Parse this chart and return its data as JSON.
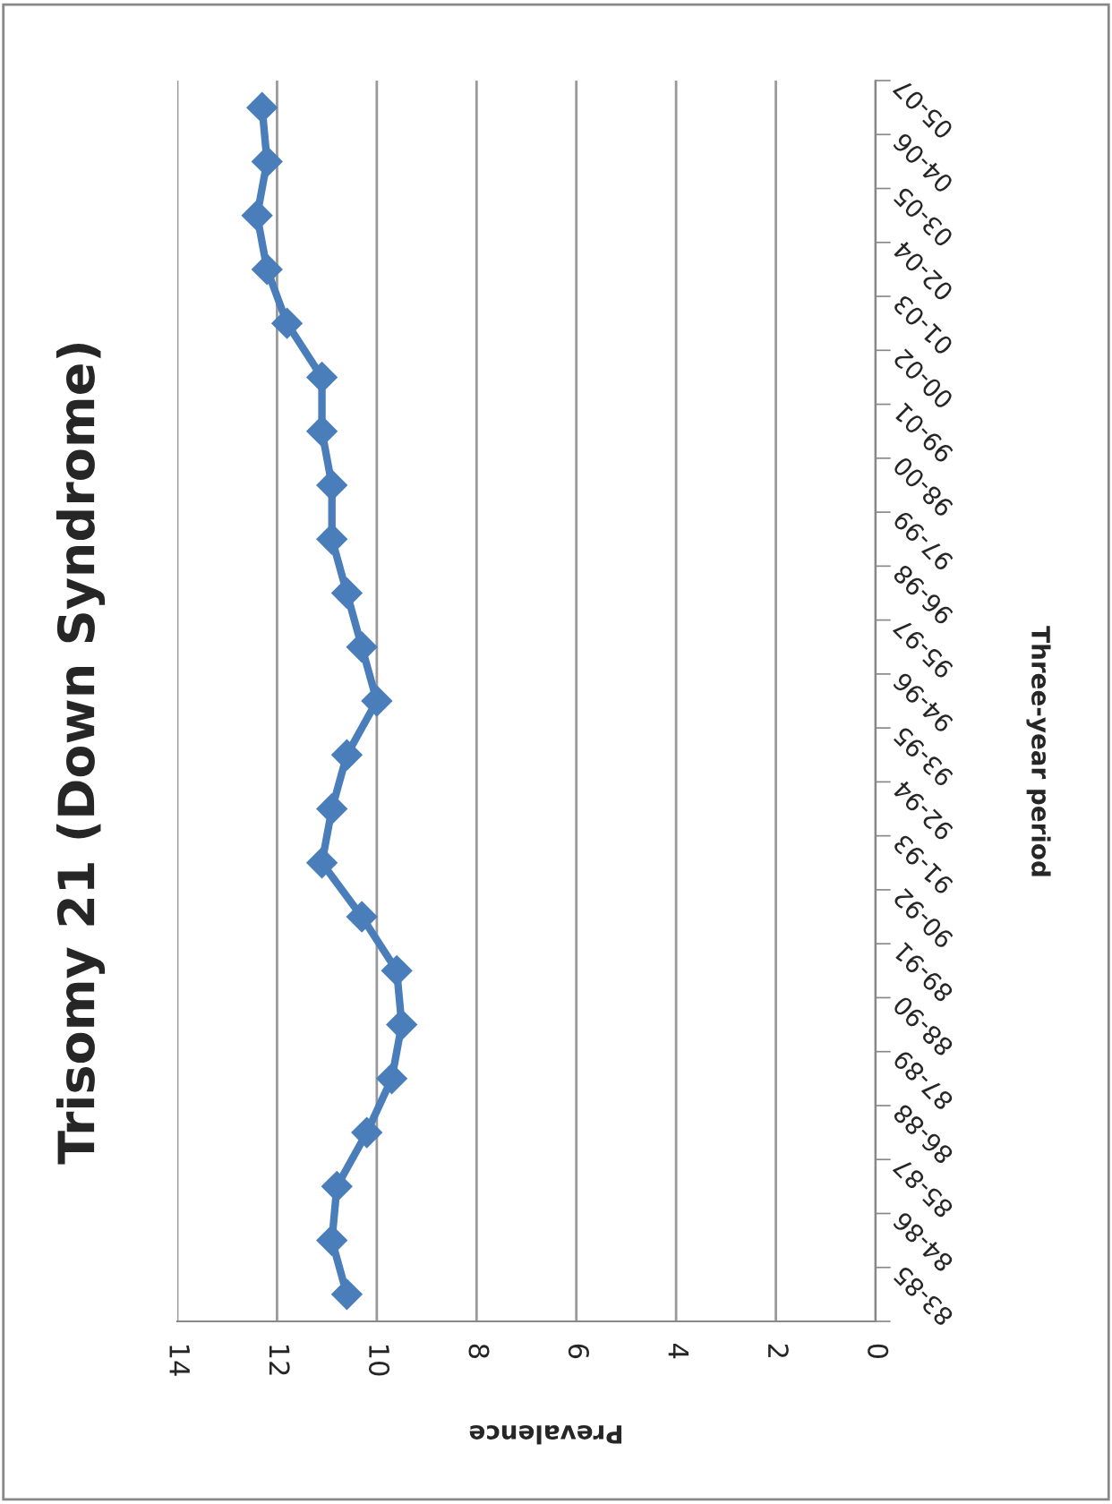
{
  "chart_data": {
    "type": "line",
    "title": "Trisomy 21 (Down Syndrome)",
    "xlabel": "Prevalence",
    "ylabel": "Three-year period",
    "categories": [
      "05-07",
      "04-06",
      "03-05",
      "02-04",
      "01-03",
      "00-02",
      "99-01",
      "98-00",
      "97-99",
      "96-98",
      "95-97",
      "94-96",
      "93-95",
      "92-94",
      "91-93",
      "90-92",
      "89-91",
      "88-90",
      "87-89",
      "86-88",
      "85-87",
      "84-86",
      "83-85"
    ],
    "series": [
      {
        "color": "#4a7ebb",
        "values": [
          12.3,
          12.2,
          12.4,
          12.2,
          11.8,
          11.1,
          11.1,
          10.9,
          10.9,
          10.6,
          10.3,
          10.0,
          10.6,
          10.9,
          11.1,
          10.3,
          9.6,
          9.5,
          9.7,
          10.2,
          10.8,
          10.9,
          10.6
        ]
      }
    ],
    "orientation": "horizontal",
    "xlim": [
      14,
      0
    ],
    "xticks": [
      0,
      2,
      4,
      6,
      8,
      10,
      12,
      14
    ],
    "grid": "x",
    "marker": "diamond",
    "line_style": "solid",
    "legend": false
  }
}
